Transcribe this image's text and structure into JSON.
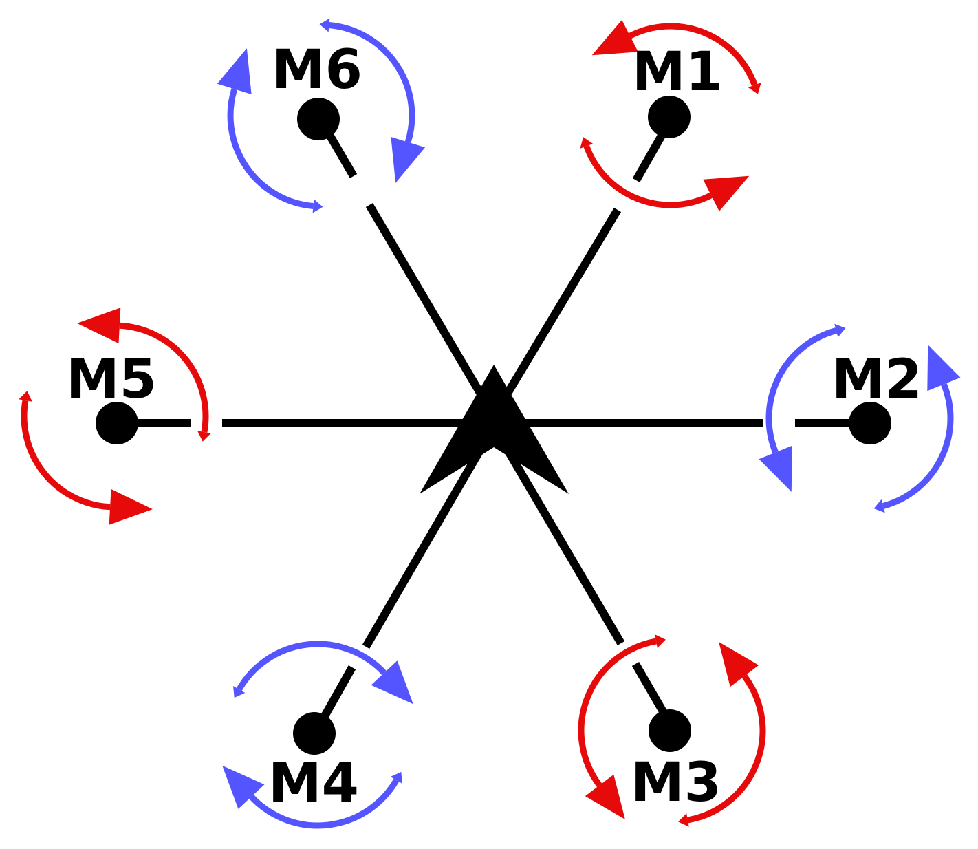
{
  "colors": {
    "cw": "#e60a0a",
    "ccw": "#5555ff",
    "frame": "#000000",
    "background": "#ffffff"
  },
  "center_marker": {
    "icon": "heading-arrow-icon"
  },
  "motors": [
    {
      "id": "M1",
      "label": "M1",
      "direction": "cw",
      "color": "#e60a0a"
    },
    {
      "id": "M2",
      "label": "M2",
      "direction": "ccw",
      "color": "#5555ff"
    },
    {
      "id": "M3",
      "label": "M3",
      "direction": "cw",
      "color": "#e60a0a"
    },
    {
      "id": "M4",
      "label": "M4",
      "direction": "ccw",
      "color": "#5555ff"
    },
    {
      "id": "M5",
      "label": "M5",
      "direction": "cw",
      "color": "#e60a0a"
    },
    {
      "id": "M6",
      "label": "M6",
      "direction": "ccw",
      "color": "#5555ff"
    }
  ]
}
